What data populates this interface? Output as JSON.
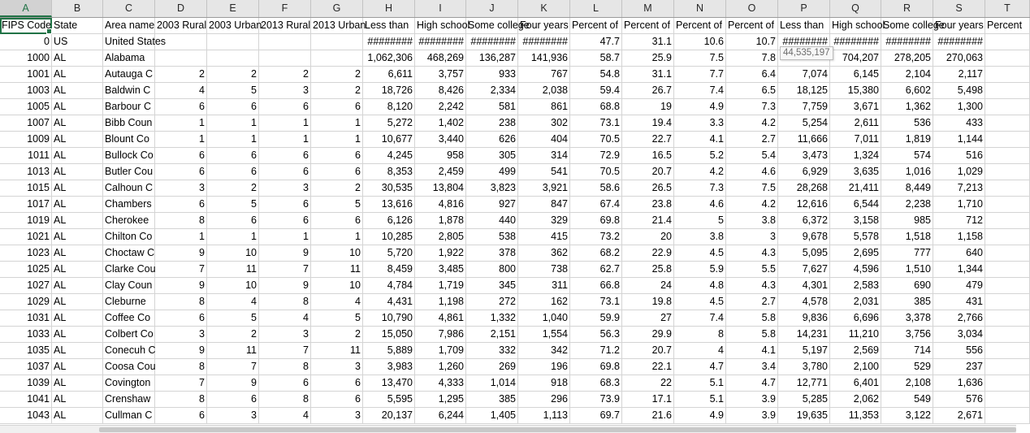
{
  "column_letters": [
    "A",
    "B",
    "C",
    "D",
    "E",
    "F",
    "G",
    "H",
    "I",
    "J",
    "K",
    "L",
    "M",
    "N",
    "O",
    "P",
    "Q",
    "R",
    "S",
    "T"
  ],
  "active_column": "A",
  "tooltip": "44,535,197",
  "rows": [
    [
      "FIPS Code",
      "State",
      "Area name",
      "2003 Rural",
      "2003 Urban",
      "2013 Rural",
      "2013 Urban",
      "Less than",
      "High school",
      "Some college",
      "Four years",
      "Percent of",
      "Percent of",
      "Percent of",
      "Percent of",
      "Less than",
      "High school",
      "Some college",
      "Four years",
      "Percent"
    ],
    [
      "0",
      "US",
      "United States",
      "",
      "",
      "",
      "",
      "########",
      "########",
      "########",
      "########",
      "47.7",
      "31.1",
      "10.6",
      "10.7",
      "########",
      "########",
      "########",
      "########",
      ""
    ],
    [
      "1000",
      "AL",
      "Alabama",
      "",
      "",
      "",
      "",
      "1,062,306",
      "468,269",
      "136,287",
      "141,936",
      "58.7",
      "25.9",
      "7.5",
      "7.8",
      "",
      "704,207",
      "278,205",
      "270,063",
      ""
    ],
    [
      "1001",
      "AL",
      "Autauga C",
      "2",
      "2",
      "2",
      "2",
      "6,611",
      "3,757",
      "933",
      "767",
      "54.8",
      "31.1",
      "7.7",
      "6.4",
      "7,074",
      "6,145",
      "2,104",
      "2,117",
      ""
    ],
    [
      "1003",
      "AL",
      "Baldwin C",
      "4",
      "5",
      "3",
      "2",
      "18,726",
      "8,426",
      "2,334",
      "2,038",
      "59.4",
      "26.7",
      "7.4",
      "6.5",
      "18,125",
      "15,380",
      "6,602",
      "5,498",
      ""
    ],
    [
      "1005",
      "AL",
      "Barbour C",
      "6",
      "6",
      "6",
      "6",
      "8,120",
      "2,242",
      "581",
      "861",
      "68.8",
      "19",
      "4.9",
      "7.3",
      "7,759",
      "3,671",
      "1,362",
      "1,300",
      ""
    ],
    [
      "1007",
      "AL",
      "Bibb Coun",
      "1",
      "1",
      "1",
      "1",
      "5,272",
      "1,402",
      "238",
      "302",
      "73.1",
      "19.4",
      "3.3",
      "4.2",
      "5,254",
      "2,611",
      "536",
      "433",
      ""
    ],
    [
      "1009",
      "AL",
      "Blount Co",
      "1",
      "1",
      "1",
      "1",
      "10,677",
      "3,440",
      "626",
      "404",
      "70.5",
      "22.7",
      "4.1",
      "2.7",
      "11,666",
      "7,011",
      "1,819",
      "1,144",
      ""
    ],
    [
      "1011",
      "AL",
      "Bullock Co",
      "6",
      "6",
      "6",
      "6",
      "4,245",
      "958",
      "305",
      "314",
      "72.9",
      "16.5",
      "5.2",
      "5.4",
      "3,473",
      "1,324",
      "574",
      "516",
      ""
    ],
    [
      "1013",
      "AL",
      "Butler Cou",
      "6",
      "6",
      "6",
      "6",
      "8,353",
      "2,459",
      "499",
      "541",
      "70.5",
      "20.7",
      "4.2",
      "4.6",
      "6,929",
      "3,635",
      "1,016",
      "1,029",
      ""
    ],
    [
      "1015",
      "AL",
      "Calhoun C",
      "3",
      "2",
      "3",
      "2",
      "30,535",
      "13,804",
      "3,823",
      "3,921",
      "58.6",
      "26.5",
      "7.3",
      "7.5",
      "28,268",
      "21,411",
      "8,449",
      "7,213",
      ""
    ],
    [
      "1017",
      "AL",
      "Chambers",
      "6",
      "5",
      "6",
      "5",
      "13,616",
      "4,816",
      "927",
      "847",
      "67.4",
      "23.8",
      "4.6",
      "4.2",
      "12,616",
      "6,544",
      "2,238",
      "1,710",
      ""
    ],
    [
      "1019",
      "AL",
      "Cherokee",
      "8",
      "6",
      "6",
      "6",
      "6,126",
      "1,878",
      "440",
      "329",
      "69.8",
      "21.4",
      "5",
      "3.8",
      "6,372",
      "3,158",
      "985",
      "712",
      ""
    ],
    [
      "1021",
      "AL",
      "Chilton Co",
      "1",
      "1",
      "1",
      "1",
      "10,285",
      "2,805",
      "538",
      "415",
      "73.2",
      "20",
      "3.8",
      "3",
      "9,678",
      "5,578",
      "1,518",
      "1,158",
      ""
    ],
    [
      "1023",
      "AL",
      "Choctaw C",
      "9",
      "10",
      "9",
      "10",
      "5,720",
      "1,922",
      "378",
      "362",
      "68.2",
      "22.9",
      "4.5",
      "4.3",
      "5,095",
      "2,695",
      "777",
      "640",
      ""
    ],
    [
      "1025",
      "AL",
      "Clarke Cou",
      "7",
      "11",
      "7",
      "11",
      "8,459",
      "3,485",
      "800",
      "738",
      "62.7",
      "25.8",
      "5.9",
      "5.5",
      "7,627",
      "4,596",
      "1,510",
      "1,344",
      ""
    ],
    [
      "1027",
      "AL",
      "Clay Coun",
      "9",
      "10",
      "9",
      "10",
      "4,784",
      "1,719",
      "345",
      "311",
      "66.8",
      "24",
      "4.8",
      "4.3",
      "4,301",
      "2,583",
      "690",
      "479",
      ""
    ],
    [
      "1029",
      "AL",
      "Cleburne",
      "8",
      "4",
      "8",
      "4",
      "4,431",
      "1,198",
      "272",
      "162",
      "73.1",
      "19.8",
      "4.5",
      "2.7",
      "4,578",
      "2,031",
      "385",
      "431",
      ""
    ],
    [
      "1031",
      "AL",
      "Coffee Co",
      "6",
      "5",
      "4",
      "5",
      "10,790",
      "4,861",
      "1,332",
      "1,040",
      "59.9",
      "27",
      "7.4",
      "5.8",
      "9,836",
      "6,696",
      "3,378",
      "2,766",
      ""
    ],
    [
      "1033",
      "AL",
      "Colbert Co",
      "3",
      "2",
      "3",
      "2",
      "15,050",
      "7,986",
      "2,151",
      "1,554",
      "56.3",
      "29.9",
      "8",
      "5.8",
      "14,231",
      "11,210",
      "3,756",
      "3,034",
      ""
    ],
    [
      "1035",
      "AL",
      "Conecuh C",
      "9",
      "11",
      "7",
      "11",
      "5,889",
      "1,709",
      "332",
      "342",
      "71.2",
      "20.7",
      "4",
      "4.1",
      "5,197",
      "2,569",
      "714",
      "556",
      ""
    ],
    [
      "1037",
      "AL",
      "Coosa Cou",
      "8",
      "7",
      "8",
      "3",
      "3,983",
      "1,260",
      "269",
      "196",
      "69.8",
      "22.1",
      "4.7",
      "3.4",
      "3,780",
      "2,100",
      "529",
      "237",
      ""
    ],
    [
      "1039",
      "AL",
      "Covington",
      "7",
      "9",
      "6",
      "6",
      "13,470",
      "4,333",
      "1,014",
      "918",
      "68.3",
      "22",
      "5.1",
      "4.7",
      "12,771",
      "6,401",
      "2,108",
      "1,636",
      ""
    ],
    [
      "1041",
      "AL",
      "Crenshaw",
      "8",
      "6",
      "8",
      "6",
      "5,595",
      "1,295",
      "385",
      "296",
      "73.9",
      "17.1",
      "5.1",
      "3.9",
      "5,285",
      "2,062",
      "549",
      "576",
      ""
    ],
    [
      "1043",
      "AL",
      "Cullman C",
      "6",
      "3",
      "4",
      "3",
      "20,137",
      "6,244",
      "1,405",
      "1,113",
      "69.7",
      "21.6",
      "4.9",
      "3.9",
      "19,635",
      "11,353",
      "3,122",
      "2,671",
      ""
    ]
  ]
}
